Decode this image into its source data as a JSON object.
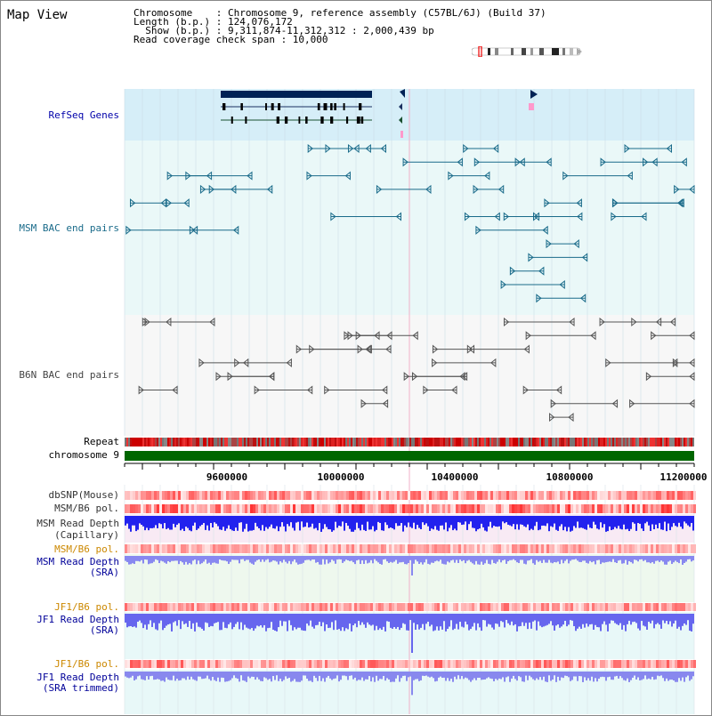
{
  "title": "Map View",
  "info": {
    "line1": "Chromosome    : Chromosome 9, reference assembly (C57BL/6J) (Build 37)",
    "line2": "Length (b.p.) : 124,076,172",
    "line3": "  Show (b.p.) : 9,311,874-11,312,312 : 2,000,439 bp",
    "line4": "Read coverage check span : 10,000"
  },
  "tracks": {
    "refseq": "RefSeq Genes",
    "msm_bac": "MSM BAC end pairs",
    "b6n_bac": "B6N BAC end pairs",
    "repeat": "Repeat",
    "chromosome": "chromosome 9",
    "dbsnp": "dbSNP(Mouse)",
    "msm_b6_pol_1": "MSM/B6 pol.",
    "msm_depth_cap_1": "MSM Read Depth",
    "msm_depth_cap_2": "(Capillary)",
    "msm_b6_pol_2": "MSM/B6 pol.",
    "msm_depth_sra_1": "MSM Read Depth",
    "msm_depth_sra_2": "(SRA)",
    "jf1_b6_pol_1": "JF1/B6 pol.",
    "jf1_depth_sra_1": "JF1 Read Depth",
    "jf1_depth_sra_2": "(SRA)",
    "jf1_b6_pol_2": "JF1/B6 pol.",
    "jf1_depth_trim_1": "JF1 Read Depth",
    "jf1_depth_trim_2": "(SRA trimmed)"
  },
  "axis": {
    "ticks": [
      "9600000",
      "10000000",
      "10400000",
      "10800000",
      "11200000"
    ]
  },
  "colors": {
    "refseq_label": "#0000aa",
    "msm_label": "#1a6b8a",
    "b6n_label": "#444444",
    "pol_label_orange": "#cc8800",
    "depth_label_blue": "#000099",
    "chromosome_bar": "#006600"
  }
}
